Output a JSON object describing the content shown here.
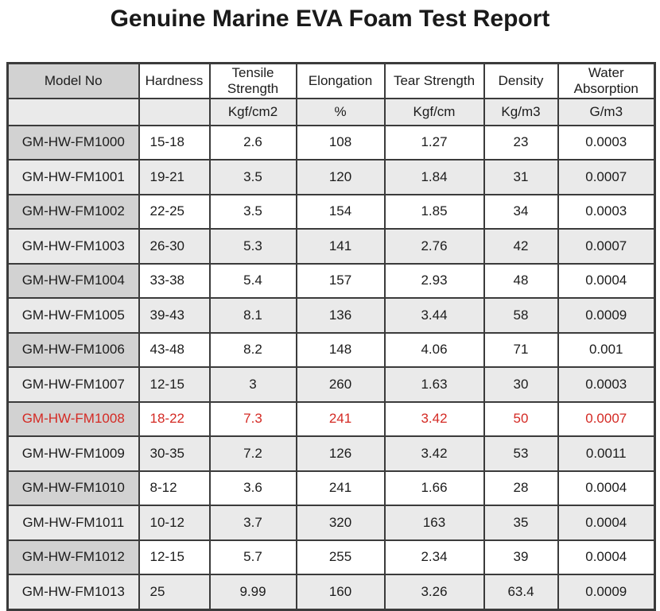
{
  "title": "Genuine Marine EVA Foam Test Report",
  "table": {
    "columns": [
      {
        "label": "Model No",
        "unit": ""
      },
      {
        "label": "Hardness",
        "unit": ""
      },
      {
        "label": "Tensile Strength",
        "unit": "Kgf/cm2"
      },
      {
        "label": "Elongation",
        "unit": "%"
      },
      {
        "label": "Tear Strength",
        "unit": "Kgf/cm"
      },
      {
        "label": "Density",
        "unit": "Kg/m3"
      },
      {
        "label": "Water Absorption",
        "unit": "G/m3"
      }
    ],
    "rows": [
      {
        "model": "GM-HW-FM1000",
        "hardness": "15-18",
        "tensile": "2.6",
        "elongation": "108",
        "tear": "1.27",
        "density": "23",
        "water": "0.0003",
        "highlight": false
      },
      {
        "model": "GM-HW-FM1001",
        "hardness": "19-21",
        "tensile": "3.5",
        "elongation": "120",
        "tear": "1.84",
        "density": "31",
        "water": "0.0007",
        "highlight": false
      },
      {
        "model": "GM-HW-FM1002",
        "hardness": "22-25",
        "tensile": "3.5",
        "elongation": "154",
        "tear": "1.85",
        "density": "34",
        "water": "0.0003",
        "highlight": false
      },
      {
        "model": "GM-HW-FM1003",
        "hardness": "26-30",
        "tensile": "5.3",
        "elongation": "141",
        "tear": "2.76",
        "density": "42",
        "water": "0.0007",
        "highlight": false
      },
      {
        "model": "GM-HW-FM1004",
        "hardness": "33-38",
        "tensile": "5.4",
        "elongation": "157",
        "tear": "2.93",
        "density": "48",
        "water": "0.0004",
        "highlight": false
      },
      {
        "model": "GM-HW-FM1005",
        "hardness": "39-43",
        "tensile": "8.1",
        "elongation": "136",
        "tear": "3.44",
        "density": "58",
        "water": "0.0009",
        "highlight": false
      },
      {
        "model": "GM-HW-FM1006",
        "hardness": "43-48",
        "tensile": "8.2",
        "elongation": "148",
        "tear": "4.06",
        "density": "71",
        "water": "0.001",
        "highlight": false
      },
      {
        "model": "GM-HW-FM1007",
        "hardness": "12-15",
        "tensile": "3",
        "elongation": "260",
        "tear": "1.63",
        "density": "30",
        "water": "0.0003",
        "highlight": false
      },
      {
        "model": "GM-HW-FM1008",
        "hardness": "18-22",
        "tensile": "7.3",
        "elongation": "241",
        "tear": "3.42",
        "density": "50",
        "water": "0.0007",
        "highlight": true
      },
      {
        "model": "GM-HW-FM1009",
        "hardness": "30-35",
        "tensile": "7.2",
        "elongation": "126",
        "tear": "3.42",
        "density": "53",
        "water": "0.0011",
        "highlight": false
      },
      {
        "model": "GM-HW-FM1010",
        "hardness": "8-12",
        "tensile": "3.6",
        "elongation": "241",
        "tear": "1.66",
        "density": "28",
        "water": "0.0004",
        "highlight": false
      },
      {
        "model": "GM-HW-FM1011",
        "hardness": "10-12",
        "tensile": "3.7",
        "elongation": "320",
        "tear": "163",
        "density": "35",
        "water": "0.0004",
        "highlight": false
      },
      {
        "model": "GM-HW-FM1012",
        "hardness": "12-15",
        "tensile": "5.7",
        "elongation": "255",
        "tear": "2.34",
        "density": "39",
        "water": "0.0004",
        "highlight": false
      },
      {
        "model": "GM-HW-FM1013",
        "hardness": "25",
        "tensile": "9.99",
        "elongation": "160",
        "tear": "3.26",
        "density": "63.4",
        "water": "0.0009",
        "highlight": false
      }
    ]
  },
  "colors": {
    "highlight_text": "#d42a24",
    "model_cell": "#d2d2d2",
    "alt_row": "#eaeaea",
    "border": "#3b3b3b",
    "text": "#1c1c1c"
  }
}
